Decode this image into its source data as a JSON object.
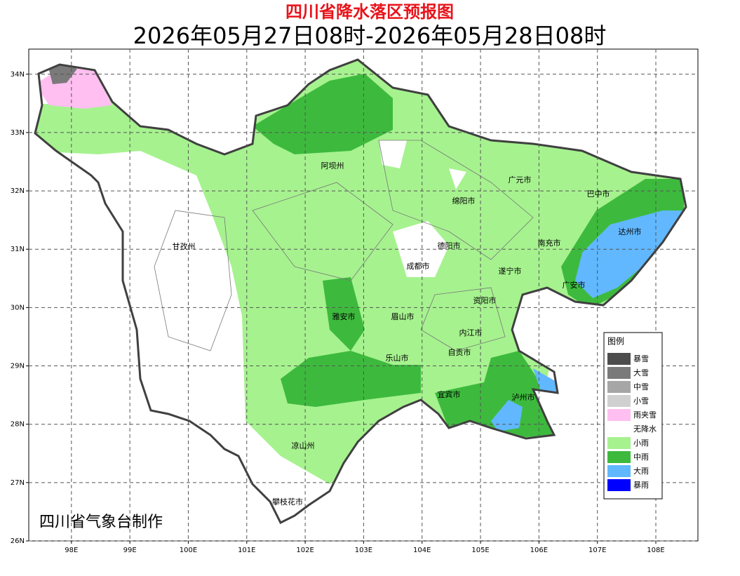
{
  "header": {
    "title": "四川省降水落区预报图",
    "subtitle": "2026年05月27日08时-2026年05月28日08时"
  },
  "map": {
    "xlim": [
      97.27,
      108.72
    ],
    "ylim": [
      26,
      34.43
    ],
    "xticks": [
      {
        "value": 98,
        "label": "98E"
      },
      {
        "value": 99,
        "label": "99E"
      },
      {
        "value": 100,
        "label": "100E"
      },
      {
        "value": 101,
        "label": "101E"
      },
      {
        "value": 102,
        "label": "102E"
      },
      {
        "value": 103,
        "label": "103E"
      },
      {
        "value": 104,
        "label": "104E"
      },
      {
        "value": 105,
        "label": "105E"
      },
      {
        "value": 106,
        "label": "106E"
      },
      {
        "value": 107,
        "label": "107E"
      },
      {
        "value": 108,
        "label": "108E"
      }
    ],
    "yticks": [
      {
        "value": 26,
        "label": "26N"
      },
      {
        "value": 27,
        "label": "27N"
      },
      {
        "value": 28,
        "label": "28N"
      },
      {
        "value": 29,
        "label": "29N"
      },
      {
        "value": 30,
        "label": "30N"
      },
      {
        "value": 31,
        "label": "31N"
      },
      {
        "value": 32,
        "label": "32N"
      },
      {
        "value": 33,
        "label": "33N"
      },
      {
        "value": 34,
        "label": "34N"
      }
    ],
    "grid": true,
    "places": [
      "阿坝州",
      "广元市",
      "巴中市",
      "绵阳市",
      "达州市",
      "甘孜州",
      "德阳市",
      "南充市",
      "成都市",
      "遂宁市",
      "广安市",
      "资阳市",
      "雅安市",
      "眉山市",
      "内江市",
      "自贡市",
      "乐山市",
      "宜宾市",
      "泸州市",
      "凉山州",
      "攀枝花市"
    ]
  },
  "legend": {
    "title": "图例",
    "items": [
      {
        "name": "暴雪",
        "color": "#4d4d4d"
      },
      {
        "name": "大雪",
        "color": "#7a7a7a"
      },
      {
        "name": "中雪",
        "color": "#a6a6a6"
      },
      {
        "name": "小雪",
        "color": "#d0d0d0"
      },
      {
        "name": "雨夹雪",
        "color": "#ffbff0"
      },
      {
        "name": "无降水",
        "color": "#ffffff"
      },
      {
        "name": "小雨",
        "color": "#a6f28f"
      },
      {
        "name": "中雨",
        "color": "#3dba3d"
      },
      {
        "name": "大雨",
        "color": "#61b8ff"
      },
      {
        "name": "暴雨",
        "color": "#0000fe"
      }
    ]
  },
  "footer": {
    "credit": "四川省气象台制作"
  }
}
